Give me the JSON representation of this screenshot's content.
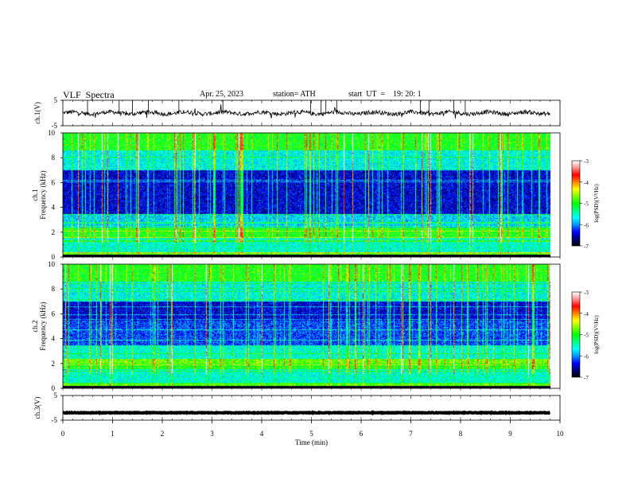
{
  "header": {
    "title": "VLF  Spectra",
    "date": "Apr. 25, 2023",
    "station": "station= ATH",
    "start": "start  UT  =    19: 20: 1"
  },
  "colors": {
    "colormap": [
      "#000000",
      "#00007a",
      "#0000ff",
      "#0096ff",
      "#00ffff",
      "#00ff80",
      "#00ff00",
      "#80ff00",
      "#ffff00",
      "#ff8000",
      "#ff0000",
      "#ff9090",
      "#ffffff"
    ]
  },
  "chart_data": [
    {
      "type": "line",
      "name": "ch1-waveform",
      "ylabel": "ch.1(V)",
      "ylim": [
        -5,
        5
      ],
      "yticks": [
        "5",
        "-5"
      ],
      "xlim": [
        0,
        10
      ],
      "baseline_value": 0,
      "note_style": "noisy trace with impulsive spikes"
    },
    {
      "type": "heatmap",
      "name": "ch1-spectrogram",
      "ylabel": "ch.1\nFrequency  (kHz)",
      "ylabel_lines": [
        "ch.1",
        "Frequency  (kHz)"
      ],
      "ylim": [
        0,
        10
      ],
      "yticks": [
        "0",
        "2",
        "4",
        "6",
        "8",
        "10"
      ],
      "xlim": [
        0,
        10
      ],
      "data_end_min": 9.8,
      "colorbar": {
        "label": "log(PSD)(V²/Hz)",
        "range": [
          -7,
          -3
        ],
        "ticks": [
          "-3",
          "-4",
          "-5",
          "-6",
          "-7"
        ]
      }
    },
    {
      "type": "heatmap",
      "name": "ch2-spectrogram",
      "ylabel": "ch.2\nFrequency  (kHz)",
      "ylabel_lines": [
        "ch.2",
        "Frequency  (kHz)"
      ],
      "ylim": [
        0,
        10
      ],
      "yticks": [
        "0",
        "2",
        "4",
        "6",
        "8",
        "10"
      ],
      "xlim": [
        0,
        10
      ],
      "data_end_min": 9.8,
      "colorbar": {
        "label": "log(PSD)(V²/Hz)",
        "range": [
          -7,
          -3
        ],
        "ticks": [
          "-3",
          "-4",
          "-5",
          "-6",
          "-7"
        ]
      }
    },
    {
      "type": "line",
      "name": "ch3-waveform",
      "ylabel": "ch.3(V)",
      "ylim": [
        -5,
        5
      ],
      "yticks": [
        "5",
        "-5"
      ],
      "xlim": [
        0,
        10
      ],
      "baseline_value": -2,
      "xlabel": "Time  (min)",
      "xticks": [
        "0",
        "1",
        "2",
        "3",
        "4",
        "5",
        "6",
        "7",
        "8",
        "9",
        "10"
      ]
    }
  ]
}
